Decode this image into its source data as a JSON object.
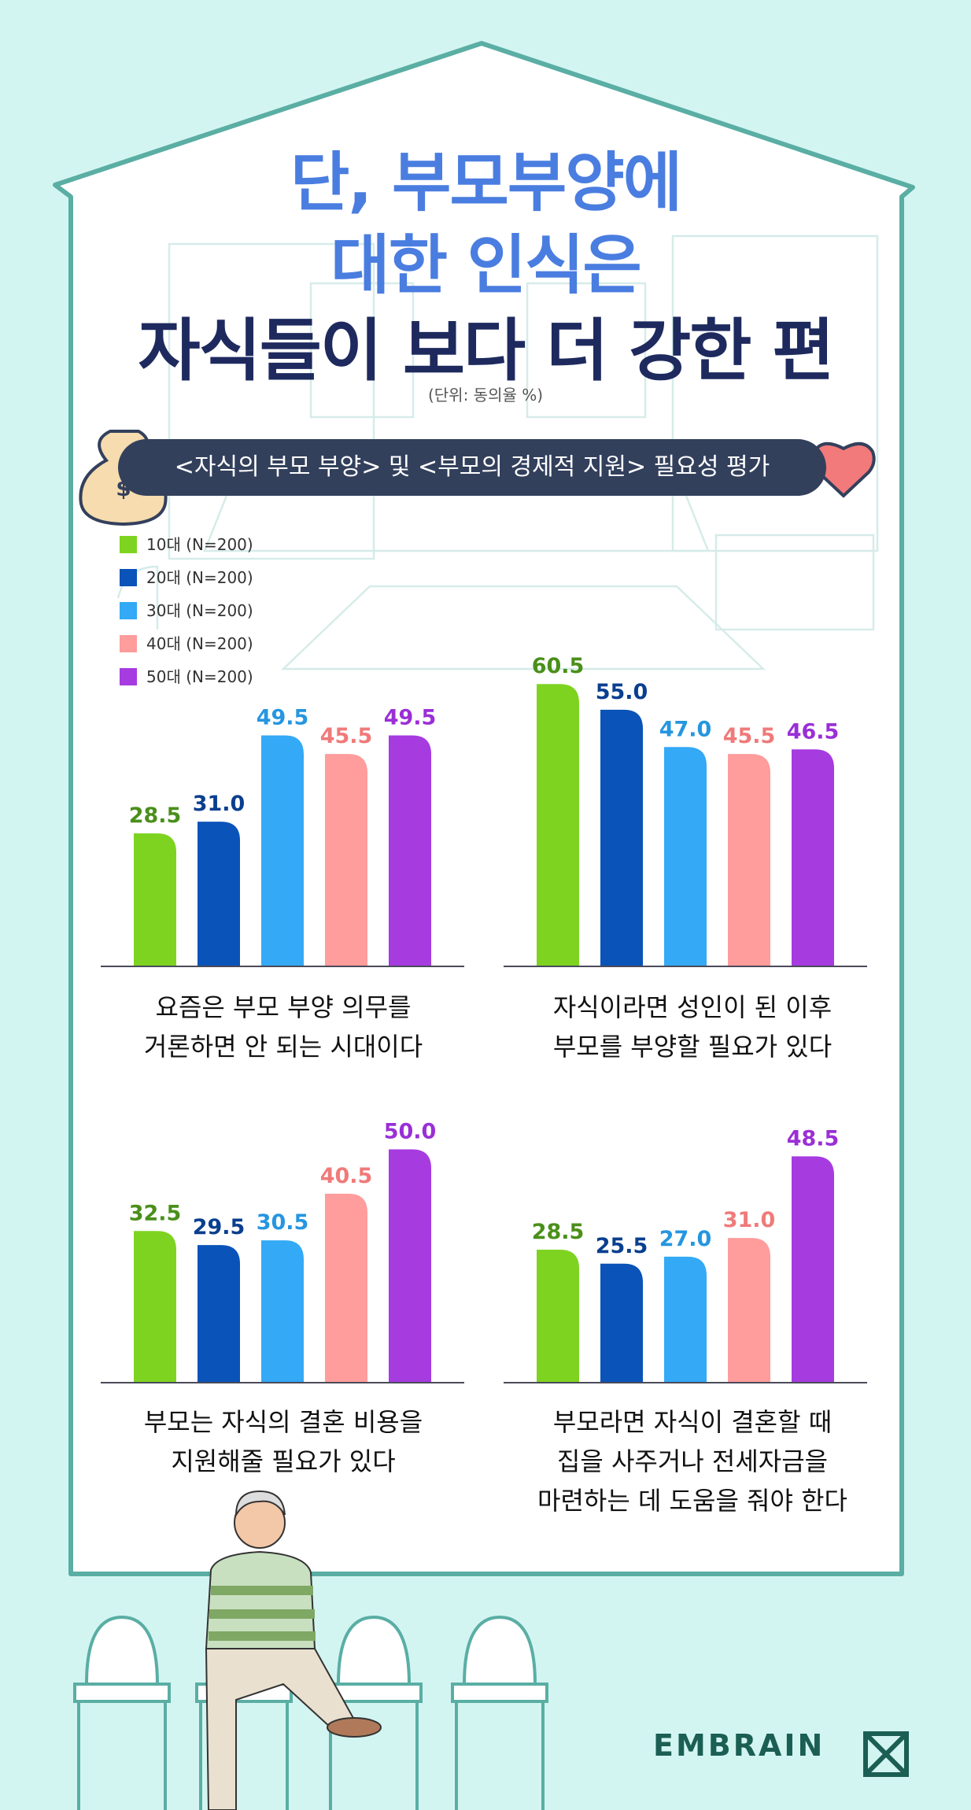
{
  "title": {
    "line1": "단, 부모부양에",
    "line2": "대한 인식은",
    "line3": "자식들이 보다 더 강한 편"
  },
  "unit_note": "(단위: 동의율 %)",
  "banner": "<자식의 부모 부양> 및 <부모의 경제적 지원> 필요성 평가",
  "colors": {
    "10s": "#7ed321",
    "20s": "#0a53b8",
    "30s": "#34a9f5",
    "40s": "#ff9c9c",
    "50s": "#a63be0"
  },
  "legend": [
    {
      "label": "10대 (N=200)",
      "color": "#7ed321"
    },
    {
      "label": "20대 (N=200)",
      "color": "#0a53b8"
    },
    {
      "label": "30대 (N=200)",
      "color": "#34a9f5"
    },
    {
      "label": "40대 (N=200)",
      "color": "#ff9c9c"
    },
    {
      "label": "50대 (N=200)",
      "color": "#a63be0"
    }
  ],
  "chart_data": [
    {
      "type": "bar",
      "caption": [
        "요즘은 부모 부양 의무를",
        "거론하면 안 되는 시대이다"
      ],
      "categories": [
        "10대 (N=200)",
        "20대 (N=200)",
        "30대 (N=200)",
        "40대 (N=200)",
        "50대 (N=200)"
      ],
      "values": [
        28.5,
        31.0,
        49.5,
        45.5,
        49.5
      ],
      "labels": [
        "28.5",
        "31.0",
        "49.5",
        "45.5",
        "49.5"
      ],
      "ylabel": "동의율 %"
    },
    {
      "type": "bar",
      "caption": [
        "자식이라면 성인이 된 이후",
        "부모를 부양할 필요가 있다"
      ],
      "categories": [
        "10대 (N=200)",
        "20대 (N=200)",
        "30대 (N=200)",
        "40대 (N=200)",
        "50대 (N=200)"
      ],
      "values": [
        60.5,
        55.0,
        47.0,
        45.5,
        46.5
      ],
      "labels": [
        "60.5",
        "55.0",
        "47.0",
        "45.5",
        "46.5"
      ],
      "ylabel": "동의율 %"
    },
    {
      "type": "bar",
      "caption": [
        "부모는 자식의 결혼 비용을",
        "지원해줄 필요가 있다"
      ],
      "categories": [
        "10대 (N=200)",
        "20대 (N=200)",
        "30대 (N=200)",
        "40대 (N=200)",
        "50대 (N=200)"
      ],
      "values": [
        32.5,
        29.5,
        30.5,
        40.5,
        50.0
      ],
      "labels": [
        "32.5",
        "29.5",
        "30.5",
        "40.5",
        "50.0"
      ],
      "ylabel": "동의율 %"
    },
    {
      "type": "bar",
      "caption": [
        "부모라면 자식이 결혼할 때",
        "집을 사주거나 전세자금을",
        "마련하는 데 도움을 줘야 한다"
      ],
      "categories": [
        "10대 (N=200)",
        "20대 (N=200)",
        "30대 (N=200)",
        "40대 (N=200)",
        "50대 (N=200)"
      ],
      "values": [
        28.5,
        25.5,
        27.0,
        31.0,
        48.5
      ],
      "labels": [
        "28.5",
        "25.5",
        "27.0",
        "31.0",
        "48.5"
      ],
      "ylabel": "동의율 %"
    }
  ],
  "logo": "EMBRAIN"
}
